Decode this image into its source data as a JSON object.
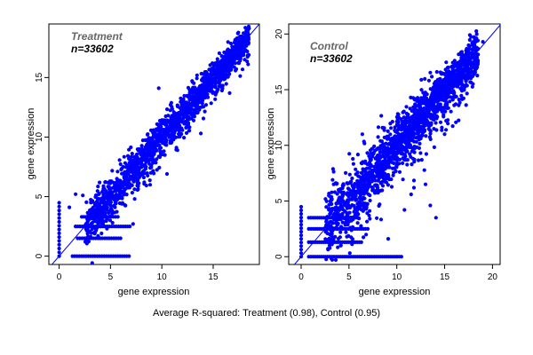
{
  "caption": "Average R-squared: Treatment (0.98), Control (0.95)",
  "colors": {
    "points": "#0000ff",
    "line": "#0000ff",
    "frame": "#000000"
  },
  "chart_data": [
    {
      "type": "scatter",
      "title": "Treatment",
      "annotation": "n=33602",
      "xlabel": "gene expression",
      "ylabel": "gene expression",
      "xlim": [
        -1,
        19.5
      ],
      "ylim": [
        -0.7,
        19.5
      ],
      "xticks": [
        0,
        5,
        10,
        15
      ],
      "yticks": [
        0,
        5,
        10,
        15
      ],
      "reference_line": {
        "slope": 1,
        "intercept": 0
      },
      "dense_band": {
        "x_start": 2.5,
        "x_end": 18.5,
        "spread": 0.9
      },
      "floor_rows": [
        {
          "y": 0,
          "x_from": 1.3,
          "x_to": 7
        },
        {
          "y": 1.5,
          "x_from": 1.8,
          "x_to": 6
        },
        {
          "y": 2.5,
          "x_from": 1.6,
          "x_to": 7
        },
        {
          "y": 3.3,
          "x_from": 2.2,
          "x_to": 5.8
        }
      ],
      "zero_column": {
        "x": 0,
        "y_from": 0,
        "y_to": 4.6
      },
      "outliers": [
        {
          "x": 1,
          "y": 4.1
        },
        {
          "x": 1.6,
          "y": 5.2
        },
        {
          "x": 2.3,
          "y": 5.1
        },
        {
          "x": 4,
          "y": 3.0
        },
        {
          "x": 5.2,
          "y": 2.8
        },
        {
          "x": 7.2,
          "y": 2.7
        },
        {
          "x": 8.6,
          "y": 10.2
        },
        {
          "x": 13.8,
          "y": 10.3
        },
        {
          "x": 9.7,
          "y": 14.1
        },
        {
          "x": 17.3,
          "y": 18.0
        },
        {
          "x": 18.4,
          "y": 18.1
        },
        {
          "x": 6.1,
          "y": 4.4
        },
        {
          "x": 10.5,
          "y": 6.9
        },
        {
          "x": 3.1,
          "y": 3.7
        }
      ]
    },
    {
      "type": "scatter",
      "title": "Control",
      "annotation": "n=33602",
      "xlabel": "gene expression",
      "ylabel": "gene expression",
      "xlim": [
        -1.3,
        20.8
      ],
      "ylim": [
        -0.7,
        20.9
      ],
      "xticks": [
        0,
        5,
        10,
        15,
        20
      ],
      "yticks": [
        0,
        5,
        10,
        15,
        20
      ],
      "reference_line": {
        "slope": 1,
        "intercept": 0
      },
      "dense_band": {
        "x_start": 2.5,
        "x_end": 18.5,
        "spread": 1.5
      },
      "floor_rows": [
        {
          "y": 0,
          "x_from": 0.8,
          "x_to": 10.5
        },
        {
          "y": 1.3,
          "x_from": 0.8,
          "x_to": 6.5
        },
        {
          "y": 2.5,
          "x_from": 0.8,
          "x_to": 7
        },
        {
          "y": 3.5,
          "x_from": 0.8,
          "x_to": 6
        }
      ],
      "zero_column": {
        "x": 0,
        "y_from": 0,
        "y_to": 4.5
      },
      "outliers": [
        {
          "x": 19,
          "y": 19.3
        },
        {
          "x": 17.5,
          "y": 18.4
        },
        {
          "x": 11.5,
          "y": 5.6
        },
        {
          "x": 13,
          "y": 6.5
        },
        {
          "x": 13.5,
          "y": 4.6
        },
        {
          "x": 10.8,
          "y": 4.2
        },
        {
          "x": 12,
          "y": 13.5
        },
        {
          "x": 15,
          "y": 11.0
        },
        {
          "x": 9.1,
          "y": 1.6
        },
        {
          "x": 14.1,
          "y": 3.5
        },
        {
          "x": 6.4,
          "y": 11.0
        },
        {
          "x": 3.4,
          "y": 6.5
        }
      ]
    }
  ]
}
